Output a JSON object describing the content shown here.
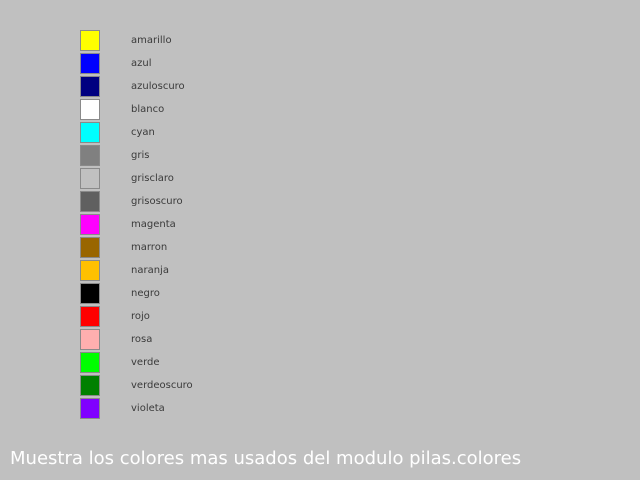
{
  "colors": [
    {
      "name": "amarillo",
      "hex": "#ffff00"
    },
    {
      "name": "azul",
      "hex": "#0000ff"
    },
    {
      "name": "azuloscuro",
      "hex": "#000080"
    },
    {
      "name": "blanco",
      "hex": "#ffffff"
    },
    {
      "name": "cyan",
      "hex": "#00ffff"
    },
    {
      "name": "gris",
      "hex": "#808080"
    },
    {
      "name": "grisclaro",
      "hex": "#c0c0c0"
    },
    {
      "name": "grisoscuro",
      "hex": "#606060"
    },
    {
      "name": "magenta",
      "hex": "#ff00ff"
    },
    {
      "name": "marron",
      "hex": "#996600"
    },
    {
      "name": "naranja",
      "hex": "#ffc000"
    },
    {
      "name": "negro",
      "hex": "#000000"
    },
    {
      "name": "rojo",
      "hex": "#ff0000"
    },
    {
      "name": "rosa",
      "hex": "#ffafaf"
    },
    {
      "name": "verde",
      "hex": "#00ff00"
    },
    {
      "name": "verdeoscuro",
      "hex": "#008000"
    },
    {
      "name": "violeta",
      "hex": "#8000ff"
    }
  ],
  "caption": "Muestra los colores mas usados del modulo pilas.colores"
}
